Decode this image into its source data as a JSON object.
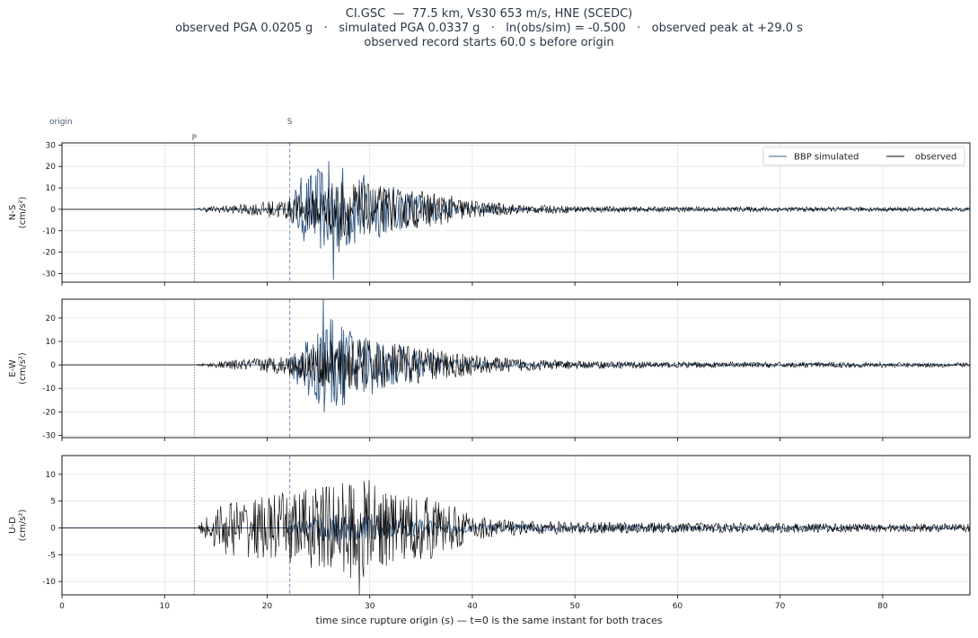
{
  "title": {
    "line1": "CI.GSC  —  77.5 km, Vs30 653 m/s, HNE (SCEDC)",
    "line2": "observed PGA 0.0205 g   ·   simulated PGA 0.0337 g   ·   ln(obs/sim) = -0.500   ·   observed peak at +29.0 s",
    "line3": "observed record starts 60.0 s before origin"
  },
  "colors": {
    "simulated": "#3a5f8a",
    "observed": "#000000",
    "grid": "#e3e3e3",
    "s_line": "#7a92b8",
    "p_line": "#8a8a8a"
  },
  "chart_data": {
    "type": "line",
    "xlabel": "time since rupture origin (s)   —   t=0 is the same instant for both traces",
    "xlim": [
      0,
      88.5
    ],
    "xticks": [
      0,
      10,
      20,
      30,
      40,
      50,
      60,
      70,
      80
    ],
    "markers": [
      {
        "label": "origin",
        "t": 0
      },
      {
        "label": "P",
        "t": 12.9
      },
      {
        "label": "S",
        "t": 22.2
      }
    ],
    "legend": {
      "placement": "top-right",
      "entries": [
        "BBP simulated",
        "observed"
      ]
    },
    "grid": true,
    "panels": [
      {
        "ylabel_top": "N-S",
        "ylabel_units": "(cm/s²)",
        "ylim": [
          -34,
          31
        ],
        "yticks": [
          30,
          20,
          10,
          0,
          -10,
          -20,
          -30
        ],
        "observed_peak": {
          "t": 27.0,
          "abs": 17
        },
        "simulated_peak": {
          "t": 26.5,
          "abs": 33
        },
        "observed_envelope": [
          [
            0,
            0
          ],
          [
            12.9,
            0
          ],
          [
            14,
            1.5
          ],
          [
            18,
            3
          ],
          [
            22,
            6
          ],
          [
            25,
            12
          ],
          [
            27,
            17
          ],
          [
            30,
            14
          ],
          [
            33,
            11
          ],
          [
            36,
            10
          ],
          [
            40,
            5
          ],
          [
            45,
            2.5
          ],
          [
            55,
            1.5
          ],
          [
            88.5,
            1.2
          ]
        ],
        "simulated_envelope": [
          [
            0,
            0
          ],
          [
            22,
            0
          ],
          [
            23,
            18
          ],
          [
            26.5,
            30
          ],
          [
            29,
            22
          ],
          [
            32,
            14
          ],
          [
            36,
            8
          ],
          [
            40,
            3
          ],
          [
            45,
            1
          ],
          [
            88.5,
            0.4
          ]
        ]
      },
      {
        "ylabel_top": "E-W",
        "ylabel_units": "(cm/s²)",
        "ylim": [
          -31,
          28
        ],
        "yticks": [
          20,
          10,
          0,
          -10,
          -20,
          -30
        ],
        "observed_peak": {
          "t": 27.5,
          "abs": 14
        },
        "simulated_peak": {
          "t": 25.5,
          "abs": 28
        },
        "observed_envelope": [
          [
            0,
            0
          ],
          [
            12.9,
            0
          ],
          [
            14,
            1
          ],
          [
            18,
            3
          ],
          [
            22,
            5
          ],
          [
            25,
            11
          ],
          [
            28,
            14
          ],
          [
            31,
            12
          ],
          [
            34,
            10
          ],
          [
            38,
            7
          ],
          [
            42,
            4
          ],
          [
            50,
            2
          ],
          [
            60,
            1.5
          ],
          [
            88.5,
            1.2
          ]
        ],
        "simulated_envelope": [
          [
            0,
            0
          ],
          [
            22,
            0
          ],
          [
            23,
            15
          ],
          [
            25.5,
            26
          ],
          [
            28,
            21
          ],
          [
            31,
            15
          ],
          [
            34,
            9
          ],
          [
            38,
            4
          ],
          [
            42,
            1.5
          ],
          [
            88.5,
            0.4
          ]
        ]
      },
      {
        "ylabel_top": "U-D",
        "ylabel_units": "(cm/s²)",
        "ylim": [
          -12.5,
          13.5
        ],
        "yticks": [
          10,
          5,
          0,
          -5,
          -10
        ],
        "observed_peak": {
          "t": 29.0,
          "abs": 12.5
        },
        "simulated_peak": {
          "t": 27.0,
          "abs": 4
        },
        "observed_envelope": [
          [
            0,
            0
          ],
          [
            13.2,
            0
          ],
          [
            14,
            3
          ],
          [
            16,
            6
          ],
          [
            20,
            7
          ],
          [
            24,
            9
          ],
          [
            27,
            10
          ],
          [
            29,
            12
          ],
          [
            32,
            8
          ],
          [
            36,
            7
          ],
          [
            40,
            3
          ],
          [
            45,
            1.5
          ],
          [
            55,
            1.2
          ],
          [
            88.5,
            0.9
          ]
        ],
        "simulated_envelope": [
          [
            0,
            0
          ],
          [
            22,
            0
          ],
          [
            23,
            2
          ],
          [
            26,
            3.5
          ],
          [
            30,
            3
          ],
          [
            35,
            2
          ],
          [
            40,
            1
          ],
          [
            88.5,
            0.3
          ]
        ]
      }
    ]
  }
}
